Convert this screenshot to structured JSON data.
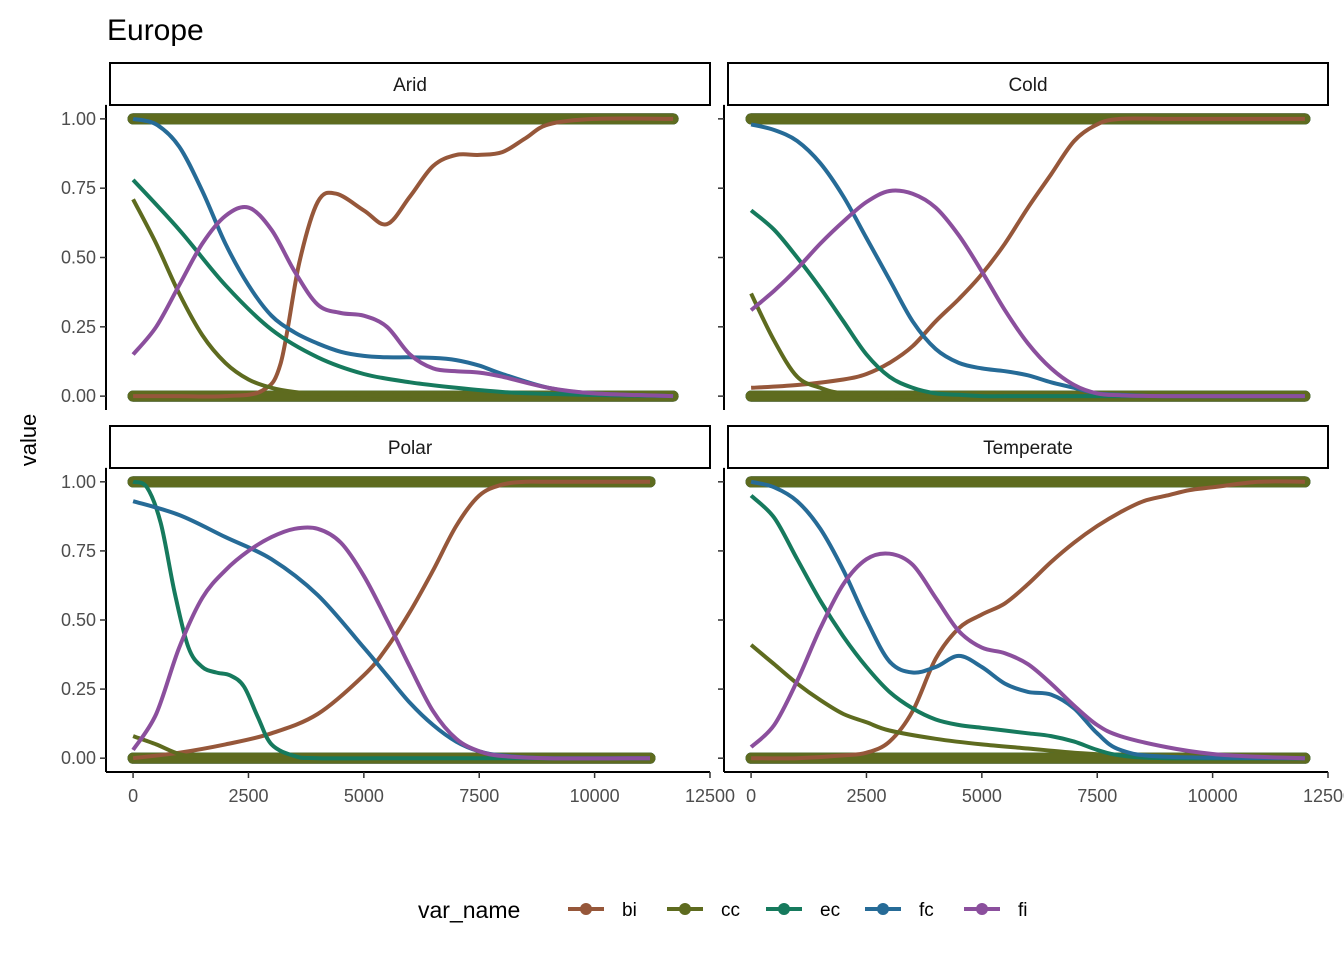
{
  "chart_data": {
    "type": "line",
    "title": "Europe",
    "xlabel": "",
    "ylabel": "value",
    "xlim": [
      -500,
      12500
    ],
    "ylim": [
      -0.05,
      1.05
    ],
    "x_ticks": [
      0,
      2500,
      5000,
      7500,
      10000,
      12500
    ],
    "y_ticks": [
      0.0,
      0.25,
      0.5,
      0.75,
      1.0
    ],
    "x_tick_labels": [
      "0",
      "2500",
      "5000",
      "7500",
      "10000",
      "12500"
    ],
    "y_tick_labels": [
      "0.00",
      "0.25",
      "0.50",
      "0.75",
      "1.00"
    ],
    "legend": {
      "title": "var_name",
      "position": "bottom",
      "entries": [
        {
          "name": "bi",
          "color": "#96573A"
        },
        {
          "name": "cc",
          "color": "#5E6B1F"
        },
        {
          "name": "ec",
          "color": "#167A5D"
        },
        {
          "name": "fc",
          "color": "#266B97"
        },
        {
          "name": "fi",
          "color": "#8B4F9D"
        }
      ]
    },
    "panels": [
      {
        "label": "Arid",
        "points": {
          "bi": [
            0,
            11700
          ],
          "cc": [
            0,
            11700
          ],
          "ec": [
            0,
            11700
          ],
          "fc": [
            0,
            11700
          ],
          "fi": [
            0,
            11700
          ]
        },
        "series": [
          {
            "name": "bi",
            "x": [
              0,
              1000,
              2000,
              2800,
              3200,
              3600,
              4000,
              4400,
              5000,
              5500,
              6000,
              6500,
              7000,
              7500,
              8000,
              8500,
              9000,
              10000,
              11700
            ],
            "y": [
              0.0,
              0.0,
              0.0,
              0.02,
              0.12,
              0.48,
              0.7,
              0.73,
              0.67,
              0.62,
              0.72,
              0.83,
              0.87,
              0.87,
              0.88,
              0.93,
              0.98,
              1.0,
              1.0
            ]
          },
          {
            "name": "cc",
            "x": [
              0,
              500,
              1000,
              1500,
              2000,
              2500,
              3000,
              3500,
              4000,
              5000,
              6000,
              8000,
              11700
            ],
            "y": [
              0.71,
              0.55,
              0.37,
              0.22,
              0.12,
              0.06,
              0.03,
              0.015,
              0.008,
              0.004,
              0.002,
              0.0,
              0.0
            ]
          },
          {
            "name": "ec",
            "x": [
              0,
              1000,
              2000,
              3000,
              4000,
              5000,
              6000,
              7000,
              8000,
              9000,
              10000,
              11700
            ],
            "y": [
              0.78,
              0.6,
              0.4,
              0.24,
              0.14,
              0.08,
              0.05,
              0.03,
              0.015,
              0.008,
              0.004,
              0.0
            ]
          },
          {
            "name": "fc",
            "x": [
              0,
              500,
              1000,
              1500,
              2000,
              2500,
              3000,
              3500,
              4000,
              4500,
              5000,
              5500,
              6000,
              6500,
              7000,
              7500,
              8000,
              9000,
              10000,
              11700
            ],
            "y": [
              1.0,
              0.98,
              0.9,
              0.74,
              0.55,
              0.4,
              0.29,
              0.23,
              0.19,
              0.16,
              0.145,
              0.14,
              0.14,
              0.138,
              0.13,
              0.11,
              0.08,
              0.03,
              0.01,
              0.0
            ]
          },
          {
            "name": "fi",
            "x": [
              0,
              500,
              1000,
              1500,
              2000,
              2500,
              3000,
              3500,
              4000,
              4500,
              5000,
              5500,
              6000,
              6500,
              7000,
              7500,
              8000,
              9000,
              10000,
              11700
            ],
            "y": [
              0.15,
              0.25,
              0.4,
              0.55,
              0.65,
              0.68,
              0.6,
              0.45,
              0.33,
              0.3,
              0.29,
              0.25,
              0.15,
              0.1,
              0.09,
              0.085,
              0.07,
              0.03,
              0.01,
              0.0
            ]
          }
        ]
      },
      {
        "label": "Cold",
        "points": {
          "bi": [
            0,
            12000
          ],
          "cc": [
            0,
            12000
          ],
          "ec": [
            0,
            12000
          ],
          "fc": [
            0,
            12000
          ],
          "fi": [
            0,
            12000
          ]
        },
        "series": [
          {
            "name": "bi",
            "x": [
              0,
              1000,
              2000,
              2500,
              3000,
              3500,
              4000,
              4500,
              5000,
              5500,
              6000,
              6500,
              7000,
              7500,
              8000,
              9000,
              10000,
              12000
            ],
            "y": [
              0.03,
              0.04,
              0.06,
              0.08,
              0.12,
              0.18,
              0.27,
              0.35,
              0.44,
              0.55,
              0.68,
              0.8,
              0.92,
              0.98,
              1.0,
              1.0,
              1.0,
              1.0
            ]
          },
          {
            "name": "cc",
            "x": [
              0,
              500,
              1000,
              1500,
              2000,
              3000,
              5000,
              12000
            ],
            "y": [
              0.37,
              0.2,
              0.07,
              0.03,
              0.01,
              0.0,
              0.0,
              0.0
            ]
          },
          {
            "name": "ec",
            "x": [
              0,
              500,
              1000,
              1500,
              2000,
              2500,
              3000,
              3500,
              4000,
              4500,
              5000,
              6000,
              8000,
              12000
            ],
            "y": [
              0.67,
              0.6,
              0.5,
              0.39,
              0.27,
              0.15,
              0.07,
              0.03,
              0.01,
              0.005,
              0.0,
              0.0,
              0.0,
              0.0
            ]
          },
          {
            "name": "fc",
            "x": [
              0,
              500,
              1000,
              1500,
              2000,
              2500,
              3000,
              3500,
              4000,
              4500,
              5000,
              5500,
              6000,
              6500,
              7000,
              7500,
              8000,
              9000,
              12000
            ],
            "y": [
              0.98,
              0.96,
              0.92,
              0.84,
              0.72,
              0.57,
              0.42,
              0.27,
              0.17,
              0.12,
              0.1,
              0.09,
              0.075,
              0.05,
              0.03,
              0.01,
              0.005,
              0.0,
              0.0
            ]
          },
          {
            "name": "fi",
            "x": [
              0,
              500,
              1000,
              1500,
              2000,
              2500,
              3000,
              3500,
              4000,
              4500,
              5000,
              5500,
              6000,
              6500,
              7000,
              7500,
              8000,
              9000,
              12000
            ],
            "y": [
              0.31,
              0.38,
              0.46,
              0.55,
              0.63,
              0.7,
              0.74,
              0.73,
              0.68,
              0.58,
              0.45,
              0.31,
              0.19,
              0.1,
              0.04,
              0.01,
              0.003,
              0.0,
              0.0
            ]
          }
        ]
      },
      {
        "label": "Polar",
        "points": {
          "bi": [
            0,
            11200
          ],
          "cc": [
            0,
            11200
          ],
          "ec": [
            0,
            11200
          ],
          "fc": [
            0,
            11200
          ],
          "fi": [
            0,
            11200
          ]
        },
        "series": [
          {
            "name": "bi",
            "x": [
              0,
              1000,
              2000,
              3000,
              4000,
              5000,
              5500,
              6000,
              6500,
              7000,
              7500,
              8000,
              8500,
              9000,
              11200
            ],
            "y": [
              0.0,
              0.02,
              0.05,
              0.09,
              0.16,
              0.3,
              0.4,
              0.53,
              0.68,
              0.84,
              0.95,
              0.99,
              1.0,
              1.0,
              1.0
            ]
          },
          {
            "name": "cc",
            "x": [
              0,
              500,
              1000,
              1500,
              2000,
              3000,
              5000,
              11200
            ],
            "y": [
              0.08,
              0.05,
              0.015,
              0.003,
              0.0,
              0.0,
              0.0,
              0.0
            ]
          },
          {
            "name": "ec",
            "x": [
              0,
              300,
              600,
              900,
              1200,
              1500,
              1800,
              2100,
              2400,
              2700,
              3000,
              3500,
              4000,
              6000,
              11200
            ],
            "y": [
              1.0,
              0.98,
              0.85,
              0.6,
              0.4,
              0.33,
              0.31,
              0.3,
              0.26,
              0.15,
              0.05,
              0.008,
              0.0,
              0.0,
              0.0
            ]
          },
          {
            "name": "fc",
            "x": [
              0,
              1000,
              2000,
              3000,
              4000,
              5000,
              5500,
              6000,
              6500,
              7000,
              7500,
              8000,
              9000,
              11200
            ],
            "y": [
              0.93,
              0.88,
              0.8,
              0.72,
              0.59,
              0.4,
              0.3,
              0.2,
              0.12,
              0.06,
              0.025,
              0.01,
              0.0,
              0.0
            ]
          },
          {
            "name": "fi",
            "x": [
              0,
              500,
              1000,
              1500,
              2000,
              2500,
              3000,
              3500,
              4000,
              4500,
              5000,
              5500,
              6000,
              6500,
              7000,
              7500,
              8000,
              9000,
              11200
            ],
            "y": [
              0.03,
              0.16,
              0.4,
              0.58,
              0.68,
              0.75,
              0.8,
              0.83,
              0.83,
              0.78,
              0.66,
              0.5,
              0.33,
              0.17,
              0.07,
              0.025,
              0.008,
              0.0,
              0.0
            ]
          }
        ]
      },
      {
        "label": "Temperate",
        "points": {
          "bi": [
            0,
            12000
          ],
          "cc": [
            0,
            12000
          ],
          "ec": [
            0,
            12000
          ],
          "fc": [
            0,
            12000
          ],
          "fi": [
            0,
            12000
          ]
        },
        "series": [
          {
            "name": "bi",
            "x": [
              0,
              1000,
              2000,
              2500,
              3000,
              3500,
              4000,
              4500,
              5000,
              5500,
              6000,
              6500,
              7000,
              7500,
              8000,
              8500,
              9000,
              9500,
              10000,
              11000,
              12000
            ],
            "y": [
              0.0,
              0.0,
              0.01,
              0.02,
              0.06,
              0.17,
              0.36,
              0.47,
              0.52,
              0.56,
              0.63,
              0.71,
              0.78,
              0.84,
              0.89,
              0.93,
              0.95,
              0.97,
              0.98,
              1.0,
              1.0
            ]
          },
          {
            "name": "cc",
            "x": [
              0,
              500,
              1000,
              1500,
              2000,
              2500,
              3000,
              4000,
              5000,
              6000,
              7000,
              8000,
              10000,
              12000
            ],
            "y": [
              0.41,
              0.34,
              0.27,
              0.21,
              0.16,
              0.13,
              0.1,
              0.07,
              0.05,
              0.035,
              0.02,
              0.01,
              0.003,
              0.0
            ]
          },
          {
            "name": "ec",
            "x": [
              0,
              500,
              1000,
              1500,
              2000,
              2500,
              3000,
              3500,
              4000,
              4500,
              5000,
              5500,
              6000,
              6500,
              7000,
              7500,
              8000,
              9000,
              12000
            ],
            "y": [
              0.95,
              0.87,
              0.72,
              0.57,
              0.44,
              0.33,
              0.24,
              0.18,
              0.14,
              0.12,
              0.11,
              0.1,
              0.09,
              0.08,
              0.06,
              0.03,
              0.01,
              0.0,
              0.0
            ]
          },
          {
            "name": "fc",
            "x": [
              0,
              500,
              1000,
              1500,
              2000,
              2500,
              3000,
              3500,
              4000,
              4500,
              5000,
              5500,
              6000,
              6500,
              7000,
              7500,
              8000,
              9000,
              12000
            ],
            "y": [
              1.0,
              0.98,
              0.93,
              0.83,
              0.68,
              0.5,
              0.35,
              0.31,
              0.33,
              0.37,
              0.33,
              0.27,
              0.24,
              0.23,
              0.18,
              0.09,
              0.03,
              0.005,
              0.0
            ]
          },
          {
            "name": "fi",
            "x": [
              0,
              500,
              1000,
              1500,
              2000,
              2500,
              3000,
              3500,
              4000,
              4500,
              5000,
              5500,
              6000,
              6500,
              7000,
              7500,
              8000,
              9000,
              10000,
              11000,
              12000
            ],
            "y": [
              0.04,
              0.12,
              0.28,
              0.47,
              0.63,
              0.72,
              0.74,
              0.7,
              0.58,
              0.46,
              0.4,
              0.38,
              0.34,
              0.27,
              0.19,
              0.12,
              0.08,
              0.04,
              0.015,
              0.005,
              0.0
            ]
          }
        ]
      }
    ]
  }
}
